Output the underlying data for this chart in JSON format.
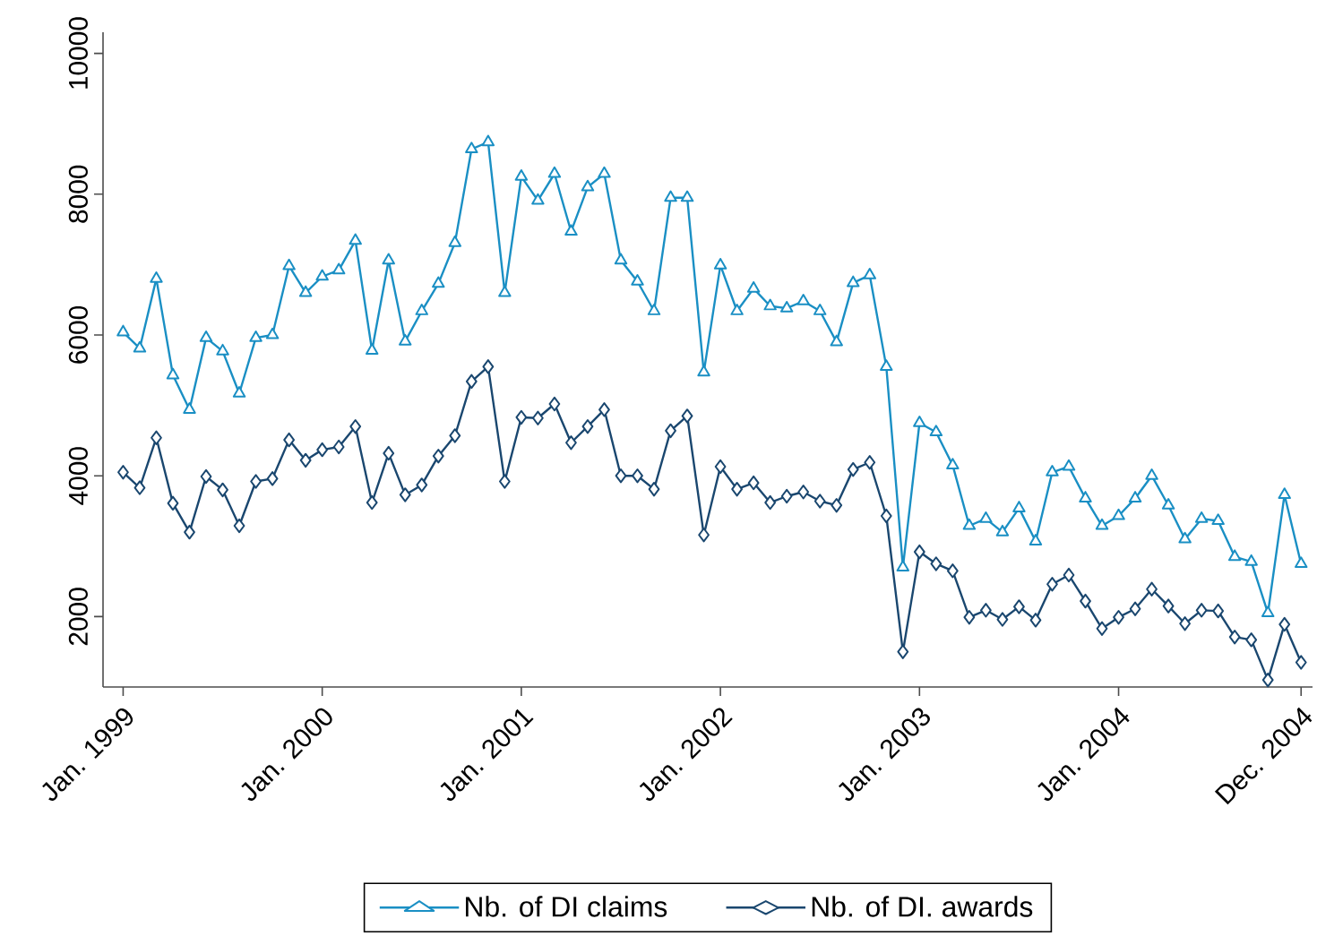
{
  "chart_data": {
    "type": "line",
    "x": [
      "1999-01",
      "1999-02",
      "1999-03",
      "1999-04",
      "1999-05",
      "1999-06",
      "1999-07",
      "1999-08",
      "1999-09",
      "1999-10",
      "1999-11",
      "1999-12",
      "2000-01",
      "2000-02",
      "2000-03",
      "2000-04",
      "2000-05",
      "2000-06",
      "2000-07",
      "2000-08",
      "2000-09",
      "2000-10",
      "2000-11",
      "2000-12",
      "2001-01",
      "2001-02",
      "2001-03",
      "2001-04",
      "2001-05",
      "2001-06",
      "2001-07",
      "2001-08",
      "2001-09",
      "2001-10",
      "2001-11",
      "2001-12",
      "2002-01",
      "2002-02",
      "2002-03",
      "2002-04",
      "2002-05",
      "2002-06",
      "2002-07",
      "2002-08",
      "2002-09",
      "2002-10",
      "2002-11",
      "2002-12",
      "2003-01",
      "2003-02",
      "2003-03",
      "2003-04",
      "2003-05",
      "2003-06",
      "2003-07",
      "2003-08",
      "2003-09",
      "2003-10",
      "2003-11",
      "2003-12",
      "2004-01",
      "2004-02",
      "2004-03",
      "2004-04",
      "2004-05",
      "2004-06",
      "2004-07",
      "2004-08",
      "2004-09",
      "2004-10",
      "2004-11",
      "2004-12"
    ],
    "series": [
      {
        "name": "Nb. of DI claims",
        "color": "#1a8fc4",
        "marker": "triangle",
        "values": [
          6040,
          5810,
          6800,
          5430,
          4940,
          5960,
          5770,
          5170,
          5960,
          6000,
          6980,
          6600,
          6830,
          6920,
          7340,
          5780,
          7060,
          5910,
          6340,
          6730,
          7310,
          8640,
          8740,
          6600,
          8250,
          7910,
          8290,
          7470,
          8100,
          8290,
          7060,
          6760,
          6340,
          7950,
          7950,
          5470,
          6990,
          6340,
          6660,
          6410,
          6380,
          6480,
          6340,
          5900,
          6740,
          6850,
          5550,
          2700,
          4750,
          4620,
          4150,
          3290,
          3390,
          3200,
          3540,
          3070,
          4050,
          4130,
          3680,
          3290,
          3430,
          3680,
          4000,
          3580,
          3100,
          3390,
          3360,
          2850,
          2780,
          2050,
          3730,
          2750
        ]
      },
      {
        "name": "Nb. of DI. awards",
        "color": "#1a476f",
        "marker": "diamond",
        "values": [
          4050,
          3830,
          4540,
          3610,
          3200,
          3990,
          3800,
          3290,
          3920,
          3960,
          4510,
          4220,
          4370,
          4410,
          4700,
          3620,
          4320,
          3730,
          3870,
          4280,
          4570,
          5340,
          5550,
          3920,
          4830,
          4820,
          5020,
          4470,
          4700,
          4940,
          4000,
          4000,
          3810,
          4640,
          4850,
          3160,
          4130,
          3810,
          3900,
          3620,
          3710,
          3770,
          3640,
          3580,
          4090,
          4190,
          3430,
          1500,
          2920,
          2750,
          2650,
          1990,
          2090,
          1960,
          2140,
          1950,
          2460,
          2590,
          2220,
          1830,
          1990,
          2110,
          2390,
          2150,
          1900,
          2090,
          2080,
          1710,
          1670,
          1100,
          1890,
          1350
        ]
      }
    ],
    "xlim": [
      "1998-11-25",
      "2004-12-22"
    ],
    "xticks": [
      {
        "value": "1999-01",
        "label": "Jan. 1999"
      },
      {
        "value": "2000-01",
        "label": "Jan. 2000"
      },
      {
        "value": "2001-01",
        "label": "Jan. 2001"
      },
      {
        "value": "2002-01",
        "label": "Jan. 2002"
      },
      {
        "value": "2003-01",
        "label": "Jan. 2003"
      },
      {
        "value": "2004-01",
        "label": "Jan. 2004"
      },
      {
        "value": "2004-12",
        "label": "Dec. 2004"
      }
    ],
    "ylim": [
      1000,
      10300
    ],
    "yticks": [
      2000,
      4000,
      6000,
      8000,
      10000
    ],
    "legend": "bottom"
  }
}
